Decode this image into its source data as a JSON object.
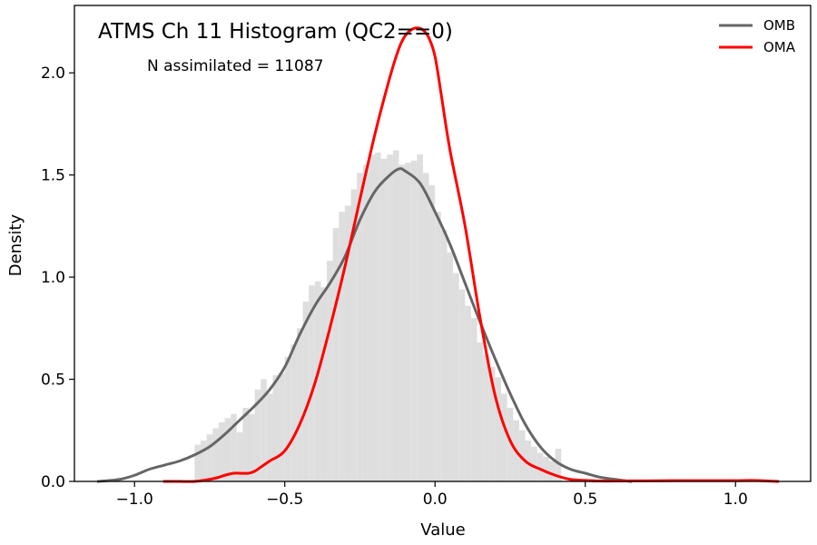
{
  "chart_data": {
    "type": "histogram",
    "title": "ATMS Ch 11 Histogram (QC2==0)",
    "annotation": "N assimilated = 11087",
    "xlabel": "Value",
    "ylabel": "Density",
    "xlim": [
      -1.2,
      1.25
    ],
    "ylim": [
      0,
      2.33
    ],
    "xticks": [
      -1.0,
      -0.5,
      0.0,
      0.5,
      1.0
    ],
    "xtick_labels": [
      "−1.0",
      "−0.5",
      "0.0",
      "0.5",
      "1.0"
    ],
    "yticks": [
      0.0,
      0.5,
      1.0,
      1.5,
      2.0
    ],
    "ytick_labels": [
      "0.0",
      "0.5",
      "1.0",
      "1.5",
      "2.0"
    ],
    "legend_position": "top-right",
    "histogram": {
      "color": "#dedede",
      "bin_width": 0.02,
      "bins_left_edge": [
        -0.8,
        -0.78,
        -0.76,
        -0.74,
        -0.72,
        -0.7,
        -0.68,
        -0.66,
        -0.64,
        -0.62,
        -0.6,
        -0.58,
        -0.56,
        -0.54,
        -0.52,
        -0.5,
        -0.48,
        -0.46,
        -0.44,
        -0.42,
        -0.4,
        -0.38,
        -0.36,
        -0.34,
        -0.32,
        -0.3,
        -0.28,
        -0.26,
        -0.24,
        -0.22,
        -0.2,
        -0.18,
        -0.16,
        -0.14,
        -0.12,
        -0.1,
        -0.08,
        -0.06,
        -0.04,
        -0.02,
        0.0,
        0.02,
        0.04,
        0.06,
        0.08,
        0.1,
        0.12,
        0.14,
        0.16,
        0.18,
        0.2,
        0.22,
        0.24,
        0.26,
        0.28,
        0.3,
        0.32,
        0.34,
        0.36,
        0.38,
        0.4
      ],
      "density": [
        0.18,
        0.2,
        0.23,
        0.26,
        0.29,
        0.31,
        0.33,
        0.24,
        0.36,
        0.33,
        0.45,
        0.5,
        0.43,
        0.52,
        0.53,
        0.61,
        0.67,
        0.75,
        0.88,
        0.96,
        0.98,
        0.95,
        1.08,
        1.24,
        1.32,
        1.35,
        1.43,
        1.51,
        1.55,
        1.6,
        1.61,
        1.58,
        1.6,
        1.62,
        1.55,
        1.56,
        1.57,
        1.6,
        1.51,
        1.45,
        1.32,
        1.23,
        1.12,
        1.02,
        0.94,
        0.86,
        0.8,
        0.68,
        0.62,
        0.56,
        0.51,
        0.43,
        0.36,
        0.3,
        0.25,
        0.2,
        0.17,
        0.14,
        0.12,
        0.1,
        0.16
      ]
    },
    "series": [
      {
        "name": "OMB",
        "color": "#666666",
        "x": [
          -1.12,
          -1.05,
          -1.0,
          -0.95,
          -0.9,
          -0.85,
          -0.8,
          -0.75,
          -0.7,
          -0.65,
          -0.6,
          -0.55,
          -0.5,
          -0.45,
          -0.4,
          -0.35,
          -0.3,
          -0.25,
          -0.2,
          -0.15,
          -0.12,
          -0.1,
          -0.05,
          0.0,
          0.05,
          0.1,
          0.15,
          0.2,
          0.25,
          0.3,
          0.35,
          0.4,
          0.45,
          0.5,
          0.55,
          0.6,
          0.65
        ],
        "y": [
          0.0,
          0.01,
          0.03,
          0.06,
          0.08,
          0.1,
          0.13,
          0.17,
          0.23,
          0.3,
          0.37,
          0.45,
          0.56,
          0.72,
          0.86,
          0.97,
          1.1,
          1.28,
          1.42,
          1.5,
          1.53,
          1.52,
          1.46,
          1.32,
          1.16,
          0.97,
          0.78,
          0.6,
          0.43,
          0.28,
          0.17,
          0.1,
          0.06,
          0.04,
          0.02,
          0.01,
          0.0
        ]
      },
      {
        "name": "OMA",
        "color": "#ff0000",
        "x": [
          -0.9,
          -0.85,
          -0.8,
          -0.75,
          -0.72,
          -0.7,
          -0.67,
          -0.65,
          -0.62,
          -0.6,
          -0.58,
          -0.55,
          -0.5,
          -0.45,
          -0.4,
          -0.35,
          -0.3,
          -0.25,
          -0.2,
          -0.15,
          -0.12,
          -0.1,
          -0.08,
          -0.06,
          -0.04,
          -0.02,
          0.0,
          0.02,
          0.05,
          0.1,
          0.15,
          0.2,
          0.25,
          0.3,
          0.35,
          0.4,
          0.45,
          0.5,
          0.55,
          0.6,
          0.7,
          0.8,
          0.9,
          1.0,
          1.05,
          1.1,
          1.14
        ],
        "y": [
          0.0,
          0.0,
          0.0,
          0.01,
          0.02,
          0.03,
          0.04,
          0.04,
          0.04,
          0.05,
          0.07,
          0.1,
          0.15,
          0.28,
          0.48,
          0.75,
          1.05,
          1.38,
          1.7,
          1.98,
          2.12,
          2.18,
          2.21,
          2.22,
          2.21,
          2.17,
          2.08,
          1.9,
          1.62,
          1.25,
          0.8,
          0.42,
          0.2,
          0.1,
          0.06,
          0.03,
          0.01,
          0.005,
          0.002,
          0.002,
          0.003,
          0.004,
          0.004,
          0.004,
          0.005,
          0.003,
          0.0
        ]
      }
    ]
  }
}
